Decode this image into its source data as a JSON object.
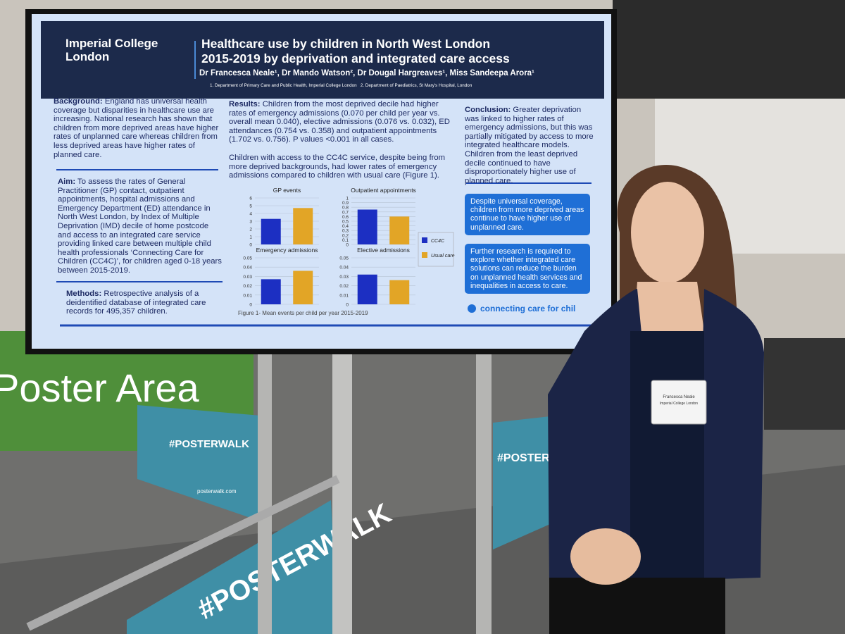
{
  "poster": {
    "logo": [
      "Imperial College",
      "London"
    ],
    "title": [
      "Healthcare use by children in North West London",
      "2015-2019 by deprivation and integrated care access"
    ],
    "authors": "Dr Francesca Neale¹, Dr Mando Watson², Dr Dougal Hargreaves¹, Miss Sandeepa Arora¹",
    "affiliations": "1. Department of Primary Care and Public Health, Imperial College London   2. Department of Paediatrics, St Mary's Hospital, London",
    "background": {
      "heading": "Background:",
      "text": "England has universal health coverage but disparities in healthcare use are increasing. National research has shown that children from more deprived areas have higher rates of unplanned care whereas children from less deprived areas have higher rates of planned care."
    },
    "aim": {
      "heading": "Aim:",
      "text": "To assess the rates of General Practitioner (GP) contact, outpatient appointments, hospital admissions and Emergency Department (ED) attendance in North West London, by Index of Multiple Deprivation (IMD) decile of home postcode and access to an integrated care service providing linked care between multiple child health professionals ‘Connecting Care for Children (CC4C)’, for children aged 0-18 years between 2015-2019."
    },
    "methods": {
      "heading": "Methods:",
      "text": "Retrospective analysis of a deidentified database of integrated care records for 495,357 children."
    },
    "results": {
      "heading": "Results:",
      "text": "Children from the most deprived decile had higher rates of emergency admissions (0.070 per child per year vs. overall mean 0.040), elective admissions (0.076 vs. 0.032), ED attendances (0.754 vs. 0.358) and outpatient appointments (1.702 vs. 0.756). P values <0.001 in all cases.",
      "text2": "Children with access to the CC4C service, despite being from more deprived backgrounds, had lower rates of emergency admissions compared to children with usual care (Figure 1)."
    },
    "conclusion": {
      "heading": "Conclusion:",
      "text": "Greater deprivation was linked to higher rates of emergency admissions, but this was partially mitigated by access to more integrated healthcare models. Children from the least deprived decile continued to have disproportionately higher use of planned care."
    },
    "callouts": [
      "Despite universal coverage, children from more deprived areas continue to have higher use of unplanned care.",
      "Further research is required to explore whether integrated care solutions can reduce the burden on unplanned health services and inequalities in access to care."
    ],
    "footer_logo": "connecting care for chil",
    "figure": {
      "type": "bar",
      "caption": "Figure 1- Mean events per child per year 2015-2019",
      "series": [
        {
          "name": "CC4C",
          "color": "#1c2fc2"
        },
        {
          "name": "Usual care",
          "color": "#e2a526"
        }
      ],
      "charts": [
        {
          "title": "GP events",
          "ylim": [
            0,
            6
          ],
          "yticks": [
            0,
            1,
            2,
            3,
            4,
            5,
            6
          ],
          "values": [
            3.3,
            4.7
          ]
        },
        {
          "title": "Outpatient appointments",
          "ylim": [
            0,
            1
          ],
          "yticks": [
            0,
            0.1,
            0.2,
            0.3,
            0.4,
            0.5,
            0.6,
            0.7,
            0.8,
            0.9,
            1
          ],
          "values": [
            0.75,
            0.6
          ]
        },
        {
          "title": "Emergency admissions",
          "ylim": [
            0,
            0.05
          ],
          "yticks": [
            0,
            0.01,
            0.02,
            0.03,
            0.04,
            0.05
          ],
          "values": [
            0.027,
            0.036
          ]
        },
        {
          "title": "Elective admissions",
          "ylim": [
            0,
            0.05
          ],
          "yticks": [
            0,
            0.01,
            0.02,
            0.03,
            0.04,
            0.05
          ],
          "values": [
            0.032,
            0.026
          ]
        }
      ]
    }
  },
  "scene": {
    "banner": "Poster Area",
    "sign": "#POSTERWALK",
    "site": "posterwalk.com",
    "badge": [
      "Francesca Neale",
      "Imperial College London"
    ]
  }
}
